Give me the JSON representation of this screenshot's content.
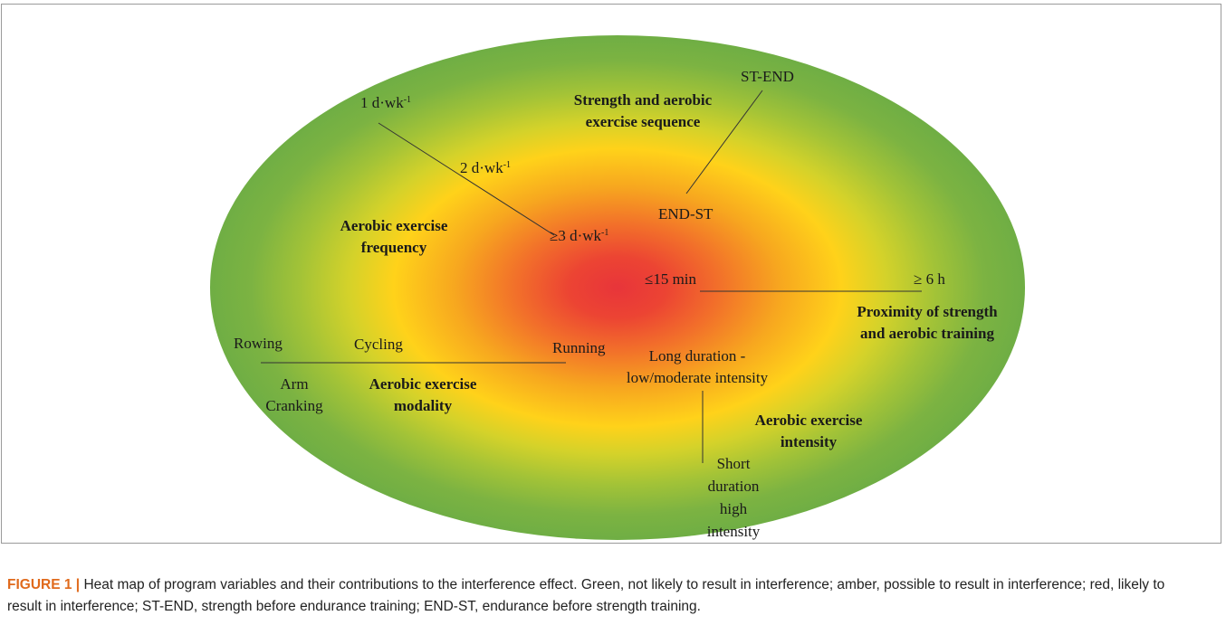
{
  "diagram": {
    "frequency": {
      "label_line1": "Aerobic exercise",
      "label_line2": "frequency",
      "one": "1 d·wk",
      "two": "2 d·wk",
      "three": "≥3 d·wk",
      "exp": "-1"
    },
    "sequence": {
      "label_line1": "Strength and aerobic",
      "label_line2": "exercise sequence",
      "st_end": "ST-END",
      "end_st": "END-ST"
    },
    "proximity": {
      "label_line1": "Proximity of strength",
      "label_line2": "and aerobic training",
      "short": "≤15 min",
      "long": "≥ 6 h"
    },
    "modality": {
      "label_line1": "Aerobic exercise",
      "label_line2": "modality",
      "rowing": "Rowing",
      "cycling": "Cycling",
      "running": "Running",
      "arm_line1": "Arm",
      "arm_line2": "Cranking"
    },
    "intensity": {
      "label_line1": "Aerobic exercise",
      "label_line2": "intensity",
      "long_line1": "Long duration -",
      "long_line2": "low/moderate intensity",
      "short_line1": "Short",
      "short_line2": "duration",
      "short_line3": "high",
      "short_line4": "intensity"
    },
    "colors": {
      "red": "#e8353a",
      "amber": "#ffd21a",
      "green": "#6fae44"
    }
  },
  "caption": {
    "figure_label": "FIGURE 1 |",
    "text": " Heat map of program variables and their contributions to the interference effect. Green, not likely to result in interference; amber, possible to result in interference; red, likely to result in interference; ST-END, strength before endurance training; END-ST, endurance before strength training."
  }
}
